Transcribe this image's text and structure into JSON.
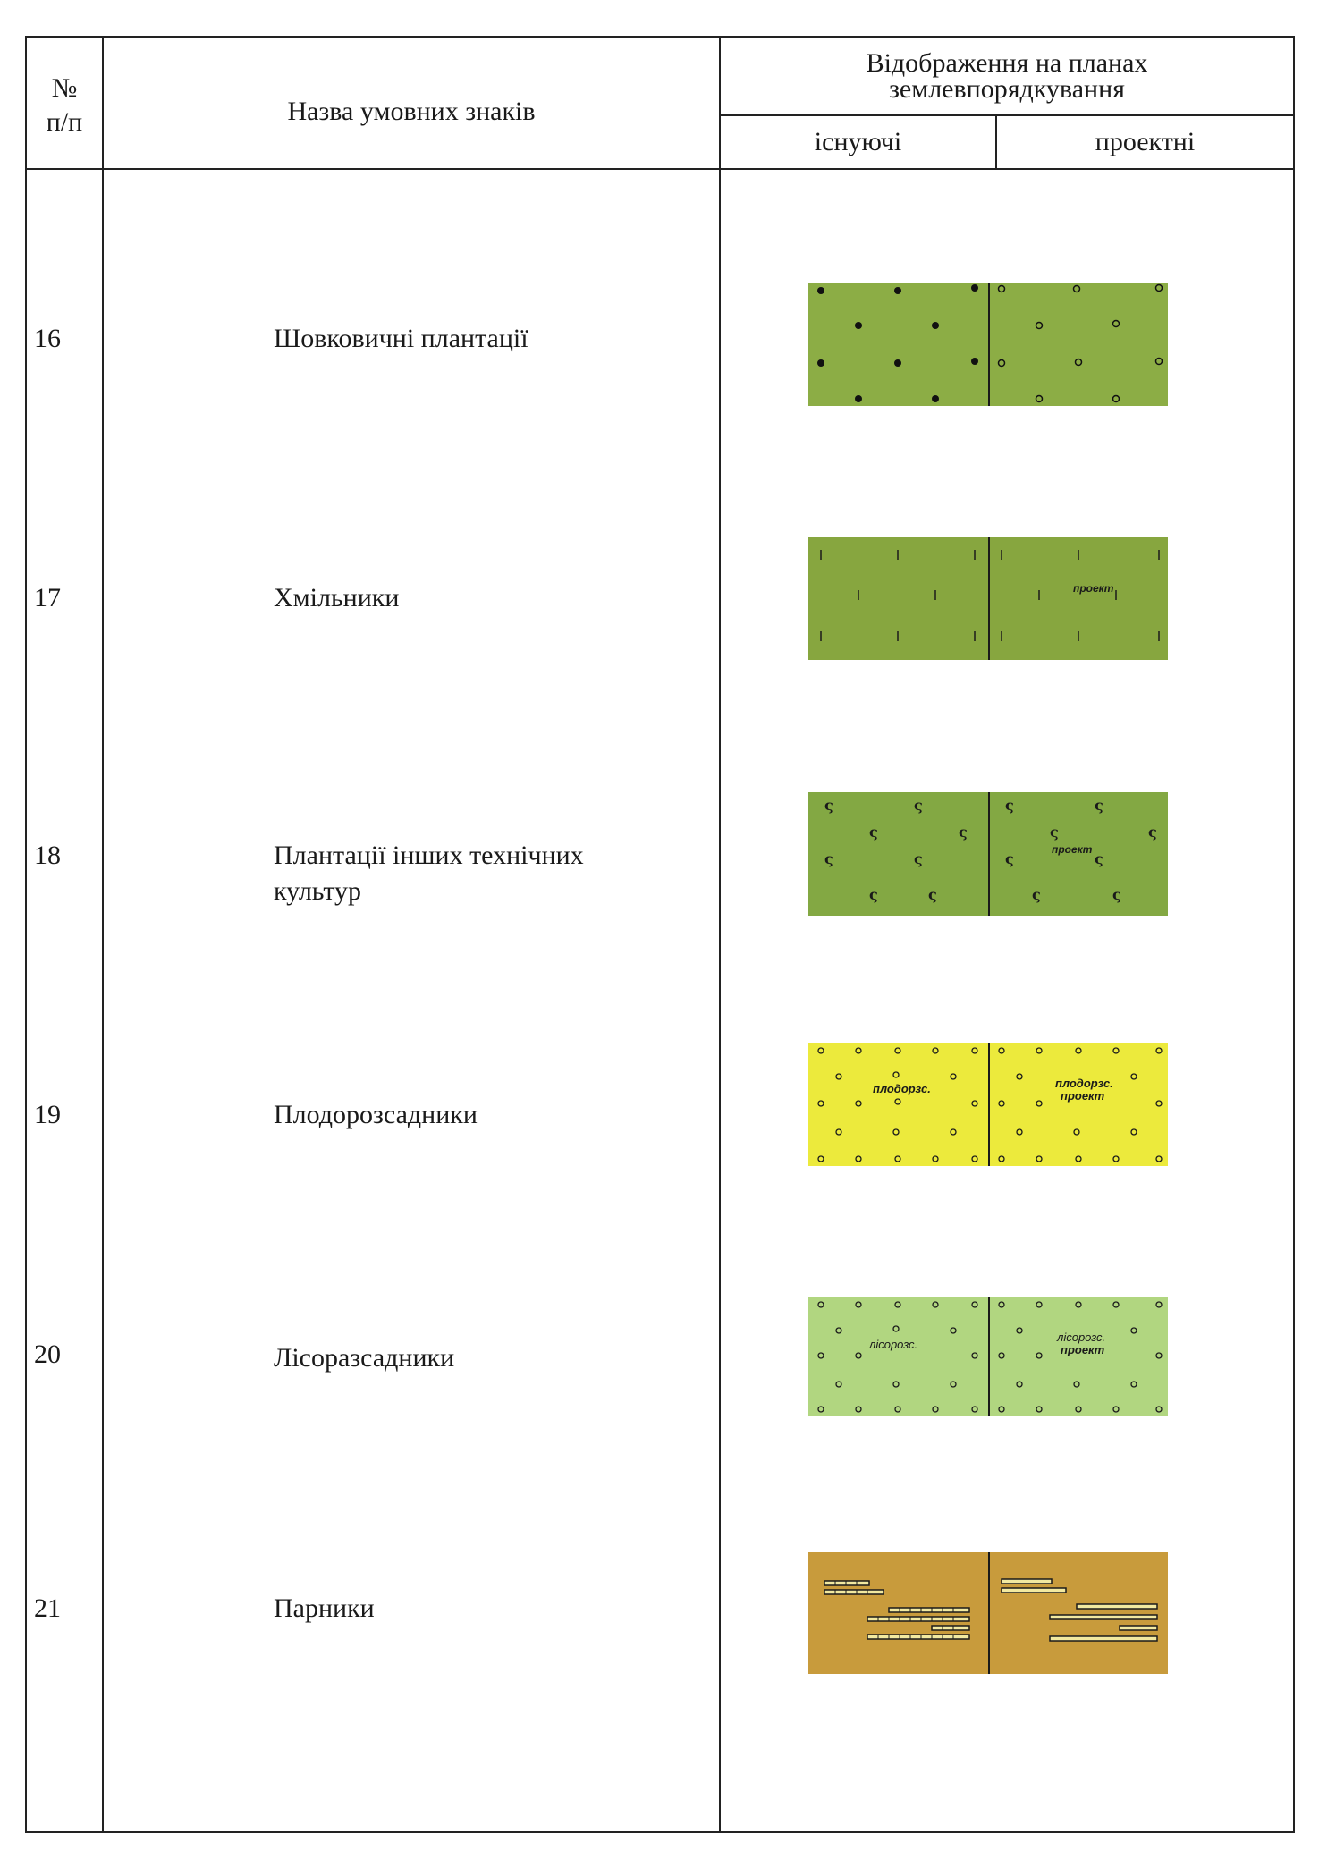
{
  "header": {
    "num_symbol": "№",
    "num_sub": "п/п",
    "name_col": "Назва умовних знаків",
    "display_col_line1": "Відображення на планах",
    "display_col_line2": "землевпорядкування",
    "existing": "існуючі",
    "projected": "проектні"
  },
  "rows": [
    {
      "num": "16",
      "name_line1": "Шовковичні плантації",
      "name_line2": "",
      "fill": "#8cad45",
      "mark": "dot"
    },
    {
      "num": "17",
      "name_line1": "Хмільники",
      "name_line2": "",
      "fill": "#87a63f",
      "mark": "tick",
      "label_proj": "проект"
    },
    {
      "num": "18",
      "name_line1": "Плантації інших технічних",
      "name_line2": "культур",
      "fill": "#83a843",
      "mark": "s",
      "label_proj": "проект"
    },
    {
      "num": "19",
      "name_line1": "Плодорозсадники",
      "name_line2": "",
      "fill": "#ecea3c",
      "mark": "ring",
      "label_exist": "плодорзс.",
      "label_proj1": "плодорзс.",
      "label_proj2": "проект"
    },
    {
      "num": "20",
      "name_line1": "Лісоразсадники",
      "name_line2": "",
      "fill": "#b1d680",
      "mark": "ring",
      "label_exist": "лісорозс.",
      "label_proj1": "лісорозс.",
      "label_proj2": "проект"
    },
    {
      "num": "21",
      "name_line1": "Парники",
      "name_line2": "",
      "fill": "#c89b3c",
      "mark": "bars"
    }
  ]
}
